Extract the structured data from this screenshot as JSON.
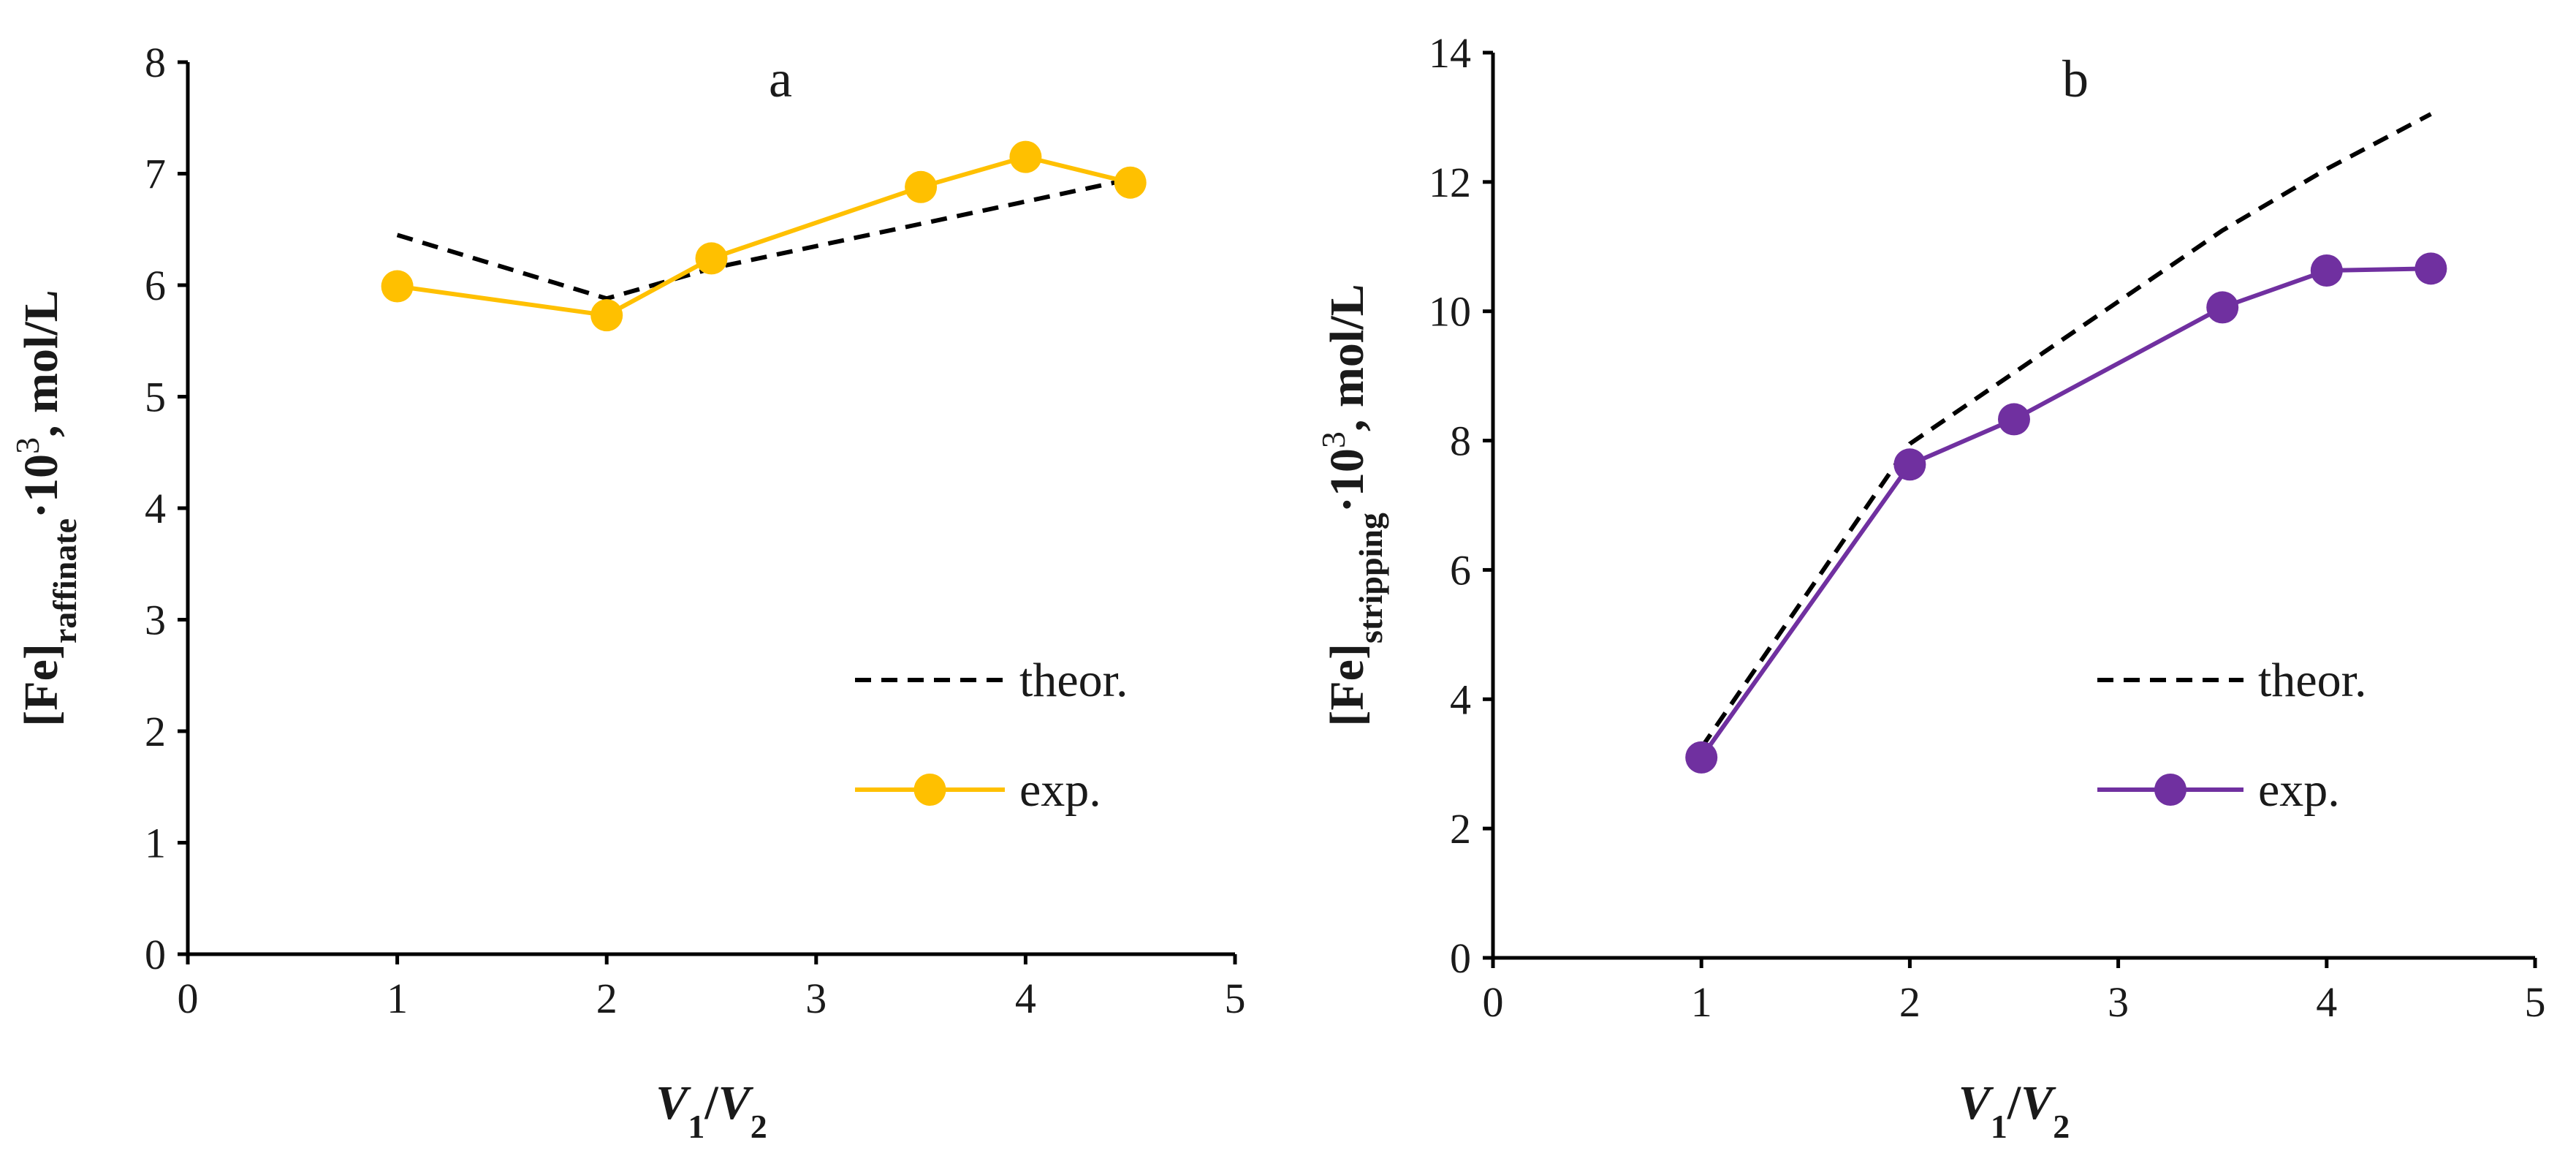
{
  "chart_data": [
    {
      "panel": "a",
      "type": "line",
      "x": [
        1,
        2,
        2.5,
        3.5,
        4,
        4.5
      ],
      "xlim": [
        0,
        5
      ],
      "ylim": [
        0,
        8
      ],
      "xticks": [
        0,
        1,
        2,
        3,
        4,
        5
      ],
      "yticks": [
        0,
        1,
        2,
        3,
        4,
        5,
        6,
        7,
        8
      ],
      "series": [
        {
          "name": "theor.",
          "style": "dashed",
          "color": "#000000",
          "values": [
            6.45,
            5.88,
            6.15,
            6.55,
            6.75,
            6.95
          ]
        },
        {
          "name": "exp.",
          "style": "solid-marker",
          "color": "#FFC000",
          "values": [
            5.99,
            5.73,
            6.24,
            6.88,
            7.15,
            6.92
          ]
        }
      ],
      "xlabel": {
        "v1": "V",
        "v1_sub": "1",
        "sep": "/",
        "v2": "V",
        "v2_sub": "2"
      },
      "ylabel": {
        "pre": "[Fe]",
        "sub": "raffinate",
        "mid": "·10",
        "sup": "3",
        "post": ", mol/L"
      },
      "legend_placement": "right-middle"
    },
    {
      "panel": "b",
      "type": "line",
      "x": [
        1,
        2,
        2.5,
        3.5,
        4,
        4.5
      ],
      "xlim": [
        0,
        5
      ],
      "ylim": [
        0,
        14
      ],
      "xticks": [
        0,
        1,
        2,
        3,
        4,
        5
      ],
      "yticks": [
        0,
        2,
        4,
        6,
        8,
        10,
        12,
        14
      ],
      "series": [
        {
          "name": "theor.",
          "style": "dashed",
          "color": "#000000",
          "values": [
            3.25,
            7.95,
            9.05,
            11.25,
            12.2,
            13.05
          ]
        },
        {
          "name": "exp.",
          "style": "solid-marker",
          "color": "#7030A0",
          "values": [
            3.1,
            7.63,
            8.33,
            10.06,
            10.63,
            10.66
          ]
        }
      ],
      "xlabel": {
        "v1": "V",
        "v1_sub": "1",
        "sep": "/",
        "v2": "V",
        "v2_sub": "2"
      },
      "ylabel": {
        "pre": "[Fe]",
        "sub": "stripping",
        "mid": "·10",
        "sup": "3",
        "post": ", mol/L"
      },
      "legend_placement": "right-middle"
    }
  ]
}
